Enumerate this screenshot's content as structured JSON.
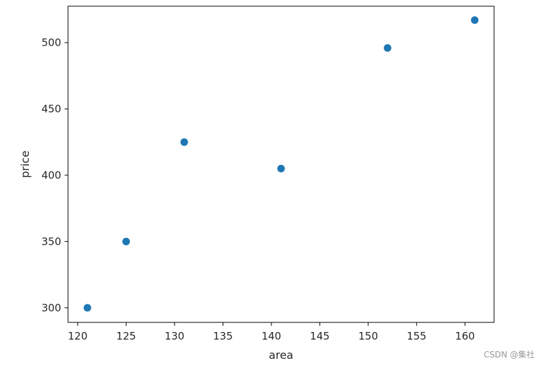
{
  "chart_data": {
    "type": "scatter",
    "title": "",
    "xlabel": "area",
    "ylabel": "price",
    "xlim": [
      119.0,
      163.0
    ],
    "ylim": [
      289.0,
      527.5
    ],
    "xticks": [
      120,
      125,
      130,
      135,
      140,
      145,
      150,
      155,
      160
    ],
    "yticks": [
      300,
      350,
      400,
      450,
      500
    ],
    "grid": false,
    "series": [
      {
        "color": "#1f77b4",
        "points": [
          {
            "x": 121,
            "y": 300
          },
          {
            "x": 125,
            "y": 350
          },
          {
            "x": 131,
            "y": 425
          },
          {
            "x": 141,
            "y": 405
          },
          {
            "x": 152,
            "y": 496
          },
          {
            "x": 161,
            "y": 517
          }
        ]
      }
    ]
  },
  "watermark": "CSDN @集社"
}
